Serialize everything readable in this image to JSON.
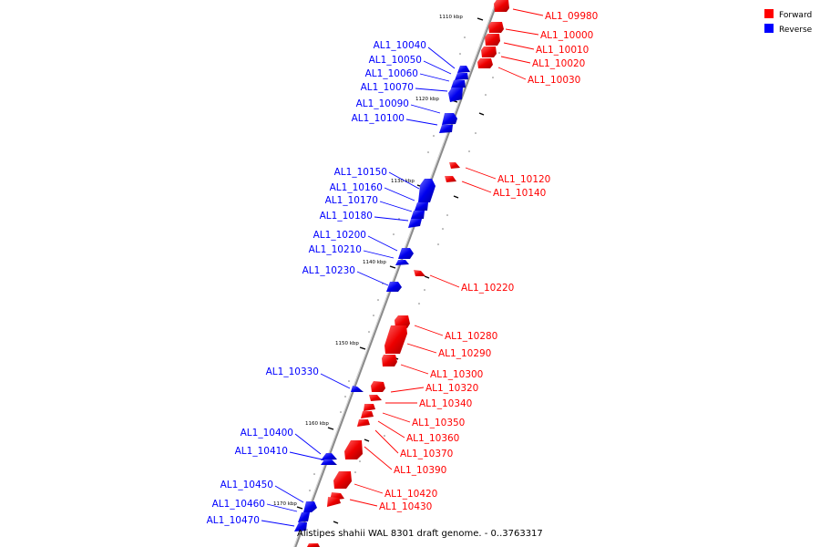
{
  "legend": {
    "forward_label": "Forward",
    "reverse_label": "Reverse",
    "forward_color": "#ff0000",
    "reverse_color": "#0000ff"
  },
  "caption": "Alistipes shahii WAL 8301 draft genome. - 0..3763317",
  "axis": {
    "kbp_ticks": [
      "1110 kbp",
      "1120 kbp",
      "1130 kbp",
      "1140 kbp",
      "1150 kbp",
      "1160 kbp",
      "1170 kbp"
    ]
  },
  "genes": {
    "forward": [
      "AL1_09980",
      "AL1_10000",
      "AL1_10010",
      "AL1_10020",
      "AL1_10030",
      "AL1_10120",
      "AL1_10140",
      "AL1_10220",
      "AL1_10280",
      "AL1_10290",
      "AL1_10300",
      "AL1_10320",
      "AL1_10340",
      "AL1_10350",
      "AL1_10360",
      "AL1_10370",
      "AL1_10390",
      "AL1_10420",
      "AL1_10430"
    ],
    "reverse": [
      "AL1_10040",
      "AL1_10050",
      "AL1_10060",
      "AL1_10070",
      "AL1_10090",
      "AL1_10100",
      "AL1_10150",
      "AL1_10160",
      "AL1_10170",
      "AL1_10180",
      "AL1_10200",
      "AL1_10210",
      "AL1_10230",
      "AL1_10330",
      "AL1_10400",
      "AL1_10410",
      "AL1_10450",
      "AL1_10460",
      "AL1_10470"
    ]
  }
}
